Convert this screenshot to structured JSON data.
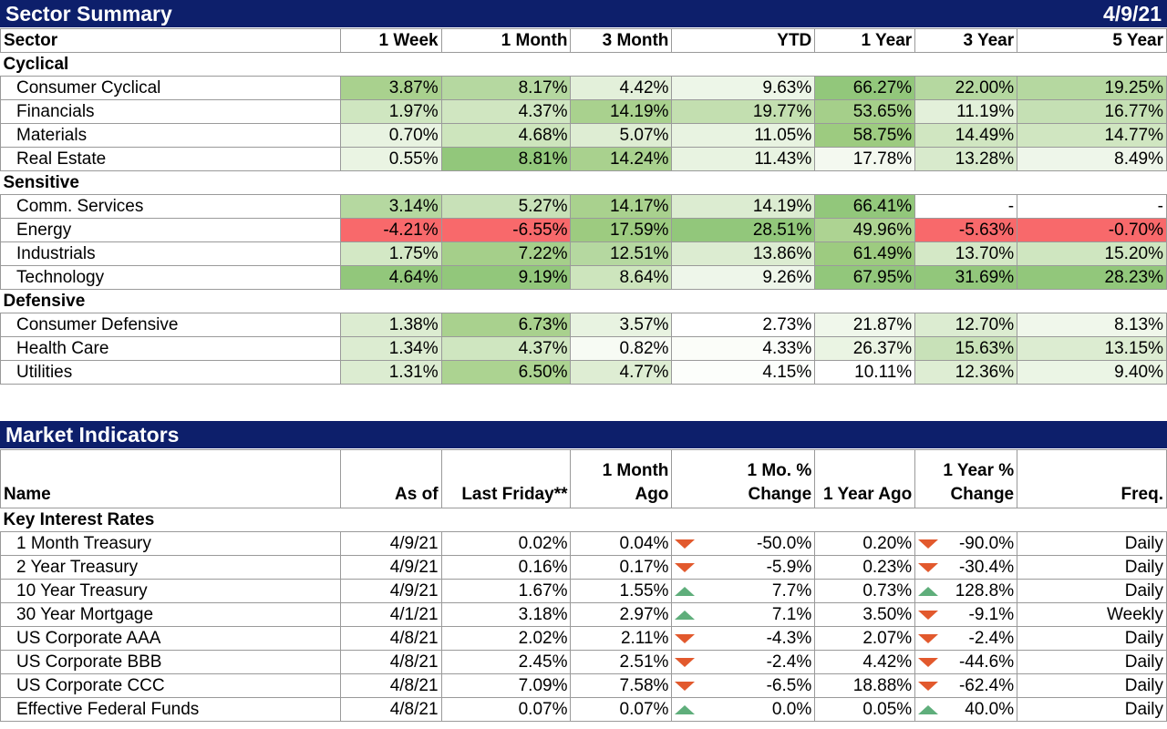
{
  "sector_summary": {
    "title": "Sector Summary",
    "date": "4/9/21",
    "headers": [
      "Sector",
      "1 Week",
      "1 Month",
      "3 Month",
      "YTD",
      "1 Year",
      "3 Year",
      "5 Year"
    ],
    "groups": [
      {
        "name": "Cyclical",
        "rows": [
          {
            "name": "Consumer Cyclical",
            "values": [
              "3.87%",
              "8.17%",
              "4.42%",
              "9.63%",
              "66.27%",
              "22.00%",
              "19.25%"
            ],
            "colors": [
              "#a9d18e",
              "#b5d8a0",
              "#e3f0da",
              "#edf6e8",
              "#92c77b",
              "#b5d8a0",
              "#b5d8a0"
            ]
          },
          {
            "name": "Financials",
            "values": [
              "1.97%",
              "4.37%",
              "14.19%",
              "19.77%",
              "53.65%",
              "11.19%",
              "16.77%"
            ],
            "colors": [
              "#cfe6c0",
              "#d0e6c1",
              "#a9d18e",
              "#c3dfb0",
              "#a5cf8a",
              "#e3f0da",
              "#c5e0b4"
            ]
          },
          {
            "name": "Materials",
            "values": [
              "0.70%",
              "4.68%",
              "5.07%",
              "11.05%",
              "58.75%",
              "14.49%",
              "14.77%"
            ],
            "colors": [
              "#e8f3e1",
              "#cde5bd",
              "#deedd3",
              "#e8f3e1",
              "#9dcb80",
              "#d0e6c1",
              "#d0e6c1"
            ]
          },
          {
            "name": "Real Estate",
            "values": [
              "0.55%",
              "8.81%",
              "14.24%",
              "11.43%",
              "17.78%",
              "13.28%",
              "8.49%"
            ],
            "colors": [
              "#eaf4e3",
              "#92c77b",
              "#a9d18e",
              "#e8f3e1",
              "#f4f9f0",
              "#d8eacc",
              "#eef6ea"
            ]
          }
        ]
      },
      {
        "name": "Sensitive",
        "rows": [
          {
            "name": "Comm. Services",
            "values": [
              "3.14%",
              "5.27%",
              "14.17%",
              "14.19%",
              "66.41%",
              "-",
              "-"
            ],
            "colors": [
              "#b5d8a0",
              "#c8e1b8",
              "#a9d18e",
              "#dcecd1",
              "#92c77b",
              "#ffffff",
              "#ffffff"
            ]
          },
          {
            "name": "Energy",
            "values": [
              "-4.21%",
              "-6.55%",
              "17.59%",
              "28.51%",
              "49.96%",
              "-5.63%",
              "-0.70%"
            ],
            "colors": [
              "#f8696b",
              "#f8696b",
              "#9dcb80",
              "#92c77b",
              "#add392",
              "#f8696b",
              "#f8696b"
            ]
          },
          {
            "name": "Industrials",
            "values": [
              "1.75%",
              "7.22%",
              "12.51%",
              "13.86%",
              "61.49%",
              "13.70%",
              "15.20%"
            ],
            "colors": [
              "#d3e8c5",
              "#a5cf8a",
              "#b5d8a0",
              "#dcecd1",
              "#9dcb80",
              "#d4e8c6",
              "#cfe6c0"
            ]
          },
          {
            "name": "Technology",
            "values": [
              "4.64%",
              "9.19%",
              "8.64%",
              "9.26%",
              "67.95%",
              "31.69%",
              "28.23%"
            ],
            "colors": [
              "#92c77b",
              "#92c77b",
              "#cde5bd",
              "#eef6ea",
              "#92c77b",
              "#92c77b",
              "#92c77b"
            ]
          }
        ]
      },
      {
        "name": "Defensive",
        "rows": [
          {
            "name": "Consumer Defensive",
            "values": [
              "1.38%",
              "6.73%",
              "3.57%",
              "2.73%",
              "21.87%",
              "12.70%",
              "8.13%"
            ],
            "colors": [
              "#dcecd1",
              "#a9d18e",
              "#e8f3e1",
              "#ffffff",
              "#f0f7eb",
              "#dcecd1",
              "#f0f7eb"
            ]
          },
          {
            "name": "Health Care",
            "values": [
              "1.34%",
              "4.37%",
              "0.82%",
              "4.33%",
              "26.37%",
              "15.63%",
              "13.15%"
            ],
            "colors": [
              "#dcecd1",
              "#cfe6c0",
              "#f7fbf4",
              "#fbfdf9",
              "#eaf4e3",
              "#c8e1b8",
              "#dcecd1"
            ]
          },
          {
            "name": "Utilities",
            "values": [
              "1.31%",
              "6.50%",
              "4.77%",
              "4.15%",
              "10.11%",
              "12.36%",
              "9.40%"
            ],
            "colors": [
              "#dcecd1",
              "#acd391",
              "#deedd3",
              "#fcfefb",
              "#ffffff",
              "#deedd3",
              "#ebf5e5"
            ]
          }
        ]
      }
    ]
  },
  "market_indicators": {
    "title": "Market Indicators",
    "headers": [
      {
        "line1": "",
        "line2": "Name"
      },
      {
        "line1": "",
        "line2": "As of"
      },
      {
        "line1": "",
        "line2": "Last Friday**"
      },
      {
        "line1": "1 Month",
        "line2": "Ago"
      },
      {
        "line1": "1 Mo. %",
        "line2": "Change"
      },
      {
        "line1": "",
        "line2": "1 Year Ago"
      },
      {
        "line1": "1 Year %",
        "line2": "Change"
      },
      {
        "line1": "",
        "line2": "Freq."
      }
    ],
    "groups": [
      {
        "name": "Key Interest Rates",
        "rows": [
          {
            "name": "1 Month Treasury",
            "as_of": "4/9/21",
            "last_friday": "0.02%",
            "month_ago": "0.04%",
            "mo_dir": "down",
            "mo_change": "-50.0%",
            "year_ago": "0.20%",
            "yr_dir": "down",
            "yr_change": "-90.0%",
            "freq": "Daily"
          },
          {
            "name": "2 Year Treasury",
            "as_of": "4/9/21",
            "last_friday": "0.16%",
            "month_ago": "0.17%",
            "mo_dir": "down",
            "mo_change": "-5.9%",
            "year_ago": "0.23%",
            "yr_dir": "down",
            "yr_change": "-30.4%",
            "freq": "Daily"
          },
          {
            "name": "10 Year Treasury",
            "as_of": "4/9/21",
            "last_friday": "1.67%",
            "month_ago": "1.55%",
            "mo_dir": "up",
            "mo_change": "7.7%",
            "year_ago": "0.73%",
            "yr_dir": "up",
            "yr_change": "128.8%",
            "freq": "Daily"
          },
          {
            "name": "30 Year Mortgage",
            "as_of": "4/1/21",
            "last_friday": "3.18%",
            "month_ago": "2.97%",
            "mo_dir": "up",
            "mo_change": "7.1%",
            "year_ago": "3.50%",
            "yr_dir": "down",
            "yr_change": "-9.1%",
            "freq": "Weekly"
          },
          {
            "name": "US Corporate AAA",
            "as_of": "4/8/21",
            "last_friday": "2.02%",
            "month_ago": "2.11%",
            "mo_dir": "down",
            "mo_change": "-4.3%",
            "year_ago": "2.07%",
            "yr_dir": "down",
            "yr_change": "-2.4%",
            "freq": "Daily"
          },
          {
            "name": "US Corporate BBB",
            "as_of": "4/8/21",
            "last_friday": "2.45%",
            "month_ago": "2.51%",
            "mo_dir": "down",
            "mo_change": "-2.4%",
            "year_ago": "4.42%",
            "yr_dir": "down",
            "yr_change": "-44.6%",
            "freq": "Daily"
          },
          {
            "name": "US Corporate CCC",
            "as_of": "4/8/21",
            "last_friday": "7.09%",
            "month_ago": "7.58%",
            "mo_dir": "down",
            "mo_change": "-6.5%",
            "year_ago": "18.88%",
            "yr_dir": "down",
            "yr_change": "-62.4%",
            "freq": "Daily"
          },
          {
            "name": "Effective Federal Funds",
            "as_of": "4/8/21",
            "last_friday": "0.07%",
            "month_ago": "0.07%",
            "mo_dir": "up",
            "mo_change": "0.0%",
            "year_ago": "0.05%",
            "yr_dir": "up",
            "yr_change": "40.0%",
            "freq": "Daily"
          }
        ]
      }
    ],
    "colors": {
      "down_arrow": "#e2592d",
      "up_arrow": "#5fae7b",
      "title_bar": "#0d1f6b"
    }
  }
}
